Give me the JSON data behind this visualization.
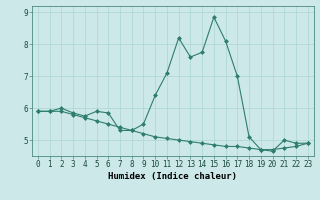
{
  "xlabel": "Humidex (Indice chaleur)",
  "background_color": "#cce8e8",
  "line_color": "#2e7d6e",
  "grid_color": "#aad4d4",
  "x_values": [
    0,
    1,
    2,
    3,
    4,
    5,
    6,
    7,
    8,
    9,
    10,
    11,
    12,
    13,
    14,
    15,
    16,
    17,
    18,
    19,
    20,
    21,
    22,
    23
  ],
  "series1": [
    5.9,
    5.9,
    6.0,
    5.85,
    5.75,
    5.9,
    5.85,
    5.3,
    5.3,
    5.5,
    6.4,
    7.1,
    8.2,
    7.6,
    7.75,
    8.85,
    8.1,
    7.0,
    5.1,
    4.7,
    4.65,
    5.0,
    4.9,
    4.9
  ],
  "series2": [
    5.9,
    5.9,
    5.9,
    5.8,
    5.7,
    5.6,
    5.5,
    5.4,
    5.3,
    5.2,
    5.1,
    5.05,
    5.0,
    4.95,
    4.9,
    4.85,
    4.8,
    4.8,
    4.75,
    4.7,
    4.7,
    4.75,
    4.8,
    4.9
  ],
  "ylim": [
    4.5,
    9.2
  ],
  "yticks": [
    5,
    6,
    7,
    8,
    9
  ],
  "xticks": [
    0,
    1,
    2,
    3,
    4,
    5,
    6,
    7,
    8,
    9,
    10,
    11,
    12,
    13,
    14,
    15,
    16,
    17,
    18,
    19,
    20,
    21,
    22,
    23
  ],
  "tick_fontsize": 5.5,
  "label_fontsize": 6.5
}
